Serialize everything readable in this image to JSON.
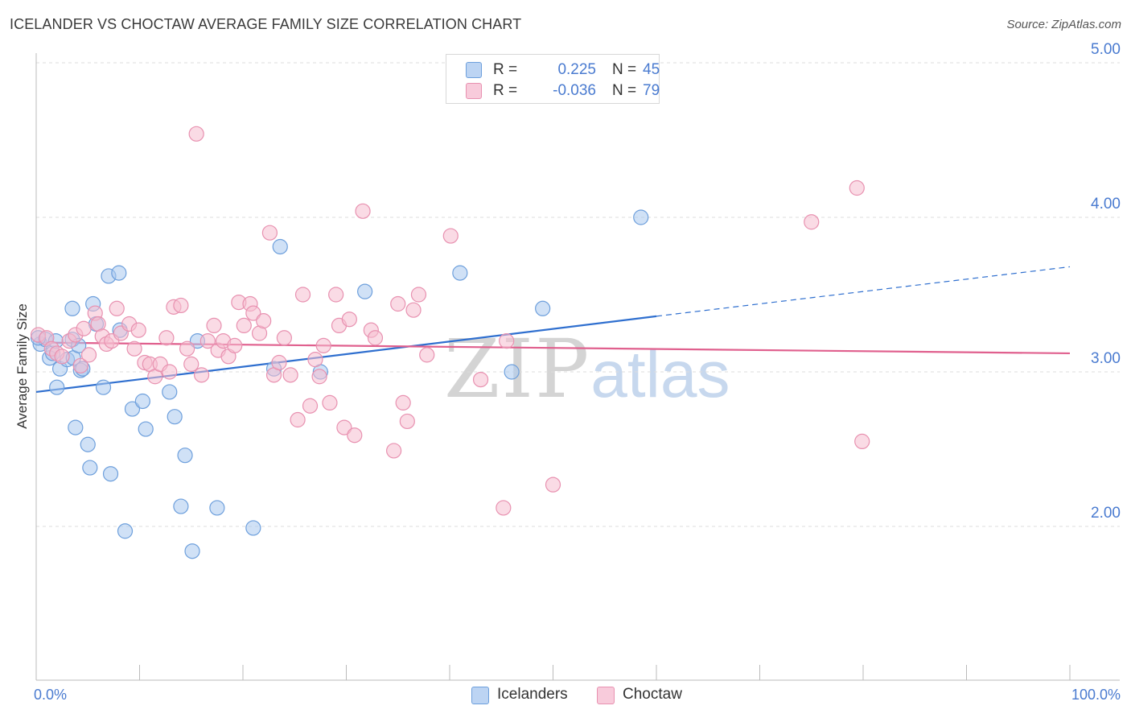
{
  "header": {
    "title": "ICELANDER VS CHOCTAW AVERAGE FAMILY SIZE CORRELATION CHART",
    "source": "Source: ZipAtlas.com"
  },
  "legend": {
    "rows": [
      {
        "r_label": "R =",
        "r_value": "0.225",
        "n_label": "N =",
        "n_value": "45"
      },
      {
        "r_label": "R =",
        "r_value": "-0.036",
        "n_label": "N =",
        "n_value": "79"
      }
    ]
  },
  "bottom_legend": {
    "items": [
      {
        "label": "Icelanders"
      },
      {
        "label": "Choctaw"
      }
    ]
  },
  "watermark": {
    "zip": "ZIP",
    "atlas": "atlas"
  },
  "colors": {
    "blue_fill": "#a9c8ef",
    "blue_stroke": "#6d9fdc",
    "blue_line": "#2f6fcf",
    "pink_fill": "#f5bdd0",
    "pink_stroke": "#e891b0",
    "pink_line": "#e0608e",
    "grid": "#dddddd",
    "tick_text": "#4a7bd0"
  },
  "chart_data": {
    "type": "scatter",
    "title": "ICELANDER VS CHOCTAW AVERAGE FAMILY SIZE CORRELATION CHART",
    "ylabel": "Average Family Size",
    "xlabel": "",
    "xlim": [
      0,
      100
    ],
    "ylim": [
      1.2,
      5.1
    ],
    "x_tick_labels": [
      "0.0%",
      "100.0%"
    ],
    "y_ticks": [
      {
        "value": 2.0,
        "label": "2.00"
      },
      {
        "value": 3.0,
        "label": "3.00"
      },
      {
        "value": 4.0,
        "label": "4.00"
      },
      {
        "value": 5.0,
        "label": "5.00"
      }
    ],
    "grid": "horizontal dashed",
    "legend_position": "top-center",
    "series": [
      {
        "name": "Icelanders",
        "color": "#a9c8ef",
        "R": 0.225,
        "N": 45,
        "trend": {
          "x0": 0,
          "y0": 2.87,
          "x1": 60,
          "y1": 3.36,
          "dash_to_x": 100,
          "dash_to_y": 3.68
        },
        "points": [
          [
            0.4,
            3.18
          ],
          [
            0.9,
            3.21
          ],
          [
            1.3,
            3.09
          ],
          [
            1.6,
            3.12
          ],
          [
            1.9,
            3.2
          ],
          [
            2.0,
            2.9
          ],
          [
            2.3,
            3.02
          ],
          [
            3.0,
            3.08
          ],
          [
            3.5,
            3.21
          ],
          [
            3.6,
            3.09
          ],
          [
            3.5,
            3.41
          ],
          [
            3.8,
            2.64
          ],
          [
            4.1,
            3.17
          ],
          [
            4.3,
            3.01
          ],
          [
            4.5,
            3.02
          ],
          [
            5.0,
            2.53
          ],
          [
            5.2,
            2.38
          ],
          [
            5.5,
            3.44
          ],
          [
            5.8,
            3.31
          ],
          [
            6.5,
            2.9
          ],
          [
            7.0,
            3.62
          ],
          [
            7.2,
            2.34
          ],
          [
            8.0,
            3.64
          ],
          [
            8.1,
            3.27
          ],
          [
            8.6,
            1.97
          ],
          [
            9.3,
            2.76
          ],
          [
            10.3,
            2.81
          ],
          [
            10.6,
            2.63
          ],
          [
            12.9,
            2.87
          ],
          [
            13.4,
            2.71
          ],
          [
            14.0,
            2.13
          ],
          [
            14.4,
            2.46
          ],
          [
            15.1,
            1.84
          ],
          [
            15.6,
            3.2
          ],
          [
            17.5,
            2.12
          ],
          [
            21.0,
            1.99
          ],
          [
            23.0,
            3.02
          ],
          [
            23.6,
            3.81
          ],
          [
            27.5,
            3.0
          ],
          [
            31.8,
            3.52
          ],
          [
            41.0,
            3.64
          ],
          [
            46.0,
            3.0
          ],
          [
            49.0,
            3.41
          ],
          [
            58.5,
            4.0
          ],
          [
            0.2,
            3.22
          ]
        ]
      },
      {
        "name": "Choctaw",
        "color": "#f5bdd0",
        "R": -0.036,
        "N": 79,
        "trend": {
          "x0": 0,
          "y0": 3.19,
          "x1": 100,
          "y1": 3.12
        },
        "points": [
          [
            0.2,
            3.24
          ],
          [
            1.0,
            3.22
          ],
          [
            1.5,
            3.15
          ],
          [
            2.0,
            3.12
          ],
          [
            2.5,
            3.1
          ],
          [
            3.2,
            3.2
          ],
          [
            3.8,
            3.24
          ],
          [
            4.3,
            3.04
          ],
          [
            4.6,
            3.28
          ],
          [
            5.1,
            3.11
          ],
          [
            5.7,
            3.38
          ],
          [
            6.0,
            3.31
          ],
          [
            6.4,
            3.23
          ],
          [
            6.8,
            3.18
          ],
          [
            7.3,
            3.2
          ],
          [
            7.8,
            3.41
          ],
          [
            8.2,
            3.25
          ],
          [
            9.0,
            3.31
          ],
          [
            9.5,
            3.15
          ],
          [
            9.9,
            3.27
          ],
          [
            10.5,
            3.06
          ],
          [
            11.0,
            3.05
          ],
          [
            11.5,
            2.97
          ],
          [
            12.0,
            3.05
          ],
          [
            12.6,
            3.22
          ],
          [
            12.9,
            3.0
          ],
          [
            13.3,
            3.42
          ],
          [
            14.0,
            3.43
          ],
          [
            14.6,
            3.15
          ],
          [
            15.0,
            3.05
          ],
          [
            15.5,
            4.54
          ],
          [
            16.0,
            2.98
          ],
          [
            16.6,
            3.2
          ],
          [
            17.2,
            3.3
          ],
          [
            17.6,
            3.14
          ],
          [
            18.1,
            3.2
          ],
          [
            18.6,
            3.1
          ],
          [
            19.2,
            3.17
          ],
          [
            19.6,
            3.45
          ],
          [
            20.1,
            3.3
          ],
          [
            20.7,
            3.44
          ],
          [
            21.0,
            3.38
          ],
          [
            21.6,
            3.25
          ],
          [
            22.0,
            3.33
          ],
          [
            22.6,
            3.9
          ],
          [
            23.0,
            2.98
          ],
          [
            23.5,
            3.06
          ],
          [
            24.0,
            3.22
          ],
          [
            24.6,
            2.98
          ],
          [
            25.3,
            2.69
          ],
          [
            25.8,
            3.5
          ],
          [
            26.5,
            2.78
          ],
          [
            27.0,
            3.08
          ],
          [
            27.4,
            2.97
          ],
          [
            27.8,
            3.17
          ],
          [
            28.4,
            2.8
          ],
          [
            29.0,
            3.5
          ],
          [
            29.3,
            3.3
          ],
          [
            29.8,
            2.64
          ],
          [
            30.3,
            3.34
          ],
          [
            30.8,
            2.59
          ],
          [
            31.6,
            4.04
          ],
          [
            32.4,
            3.27
          ],
          [
            32.8,
            3.22
          ],
          [
            34.6,
            2.49
          ],
          [
            35.0,
            3.44
          ],
          [
            35.5,
            2.8
          ],
          [
            35.9,
            2.68
          ],
          [
            36.5,
            3.4
          ],
          [
            37.0,
            3.5
          ],
          [
            37.8,
            3.11
          ],
          [
            40.1,
            3.88
          ],
          [
            43.0,
            2.95
          ],
          [
            45.2,
            2.12
          ],
          [
            45.5,
            3.2
          ],
          [
            50.0,
            2.27
          ],
          [
            75.0,
            3.97
          ],
          [
            79.4,
            4.19
          ],
          [
            79.9,
            2.55
          ]
        ]
      }
    ]
  }
}
